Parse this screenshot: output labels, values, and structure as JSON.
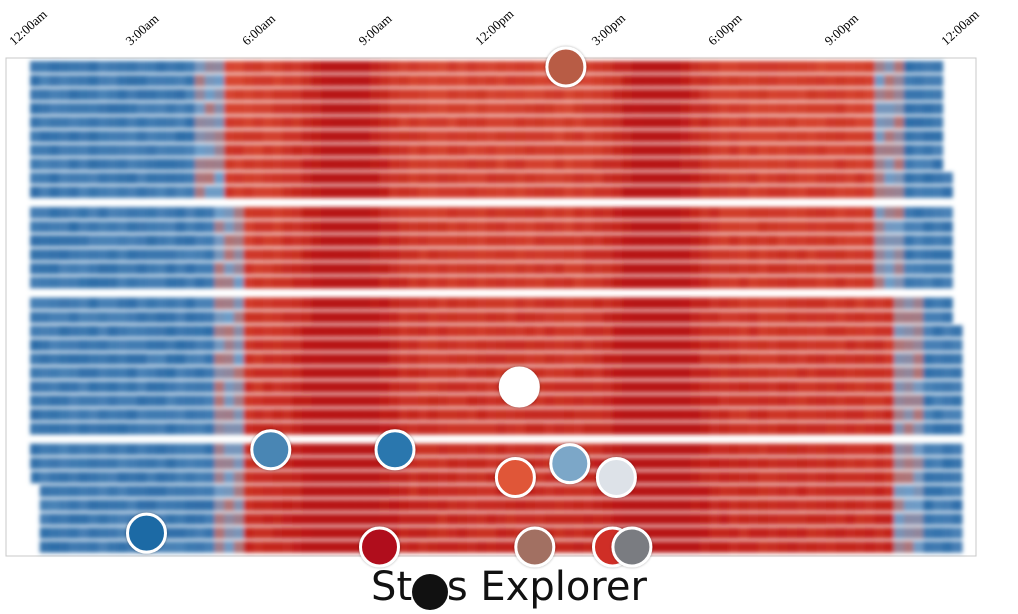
{
  "chart_data": {
    "type": "heatmap",
    "title": "Stc s Explorer",
    "x_ticks": [
      "12:00am",
      "3:00am",
      "6:00am",
      "9:00am",
      "12:00pm",
      "3:00pm",
      "6:00pm",
      "9:00pm",
      "12:00am"
    ],
    "x_range_hours": [
      0,
      24
    ],
    "row_groups": [
      {
        "rows": 10,
        "active_start_hour": 5,
        "active_end_hour": 21.5
      },
      {
        "rows": 6,
        "active_start_hour": 5.5,
        "active_end_hour": 21.5
      },
      {
        "rows": 10,
        "active_start_hour": 5.5,
        "active_end_hour": 22
      },
      {
        "rows": 8,
        "active_start_hour": 5.5,
        "active_end_hour": 22
      }
    ],
    "peak_hours": [
      8,
      16
    ],
    "colors": {
      "night": "#2f6ea9",
      "night_light": "#6c9cc8",
      "day": "#e0553a",
      "peak": "#b81212",
      "separator": "#ffffff"
    },
    "markers": [
      {
        "hour": 13.8,
        "row": 0,
        "color": "#b85b45"
      },
      {
        "hour": 12.6,
        "row": 22,
        "color": "#ffffff"
      },
      {
        "hour": 6.2,
        "row": 26,
        "color": "#4a86b4"
      },
      {
        "hour": 9.4,
        "row": 26,
        "color": "#2b77ae"
      },
      {
        "hour": 13.9,
        "row": 27,
        "color": "#7ca7c8"
      },
      {
        "hour": 15.1,
        "row": 28,
        "color": "#dde2e8"
      },
      {
        "hour": 12.5,
        "row": 28,
        "color": "#e05638"
      },
      {
        "hour": 3.0,
        "row": 32,
        "color": "#1f6aa5"
      },
      {
        "hour": 9.0,
        "row": 35,
        "color": "#b0101b"
      },
      {
        "hour": 13.0,
        "row": 36,
        "color": "#a27062"
      },
      {
        "hour": 15.0,
        "row": 37,
        "color": "#cf2e25"
      },
      {
        "hour": 15.5,
        "row": 39,
        "color": "#7a7c81"
      }
    ]
  }
}
